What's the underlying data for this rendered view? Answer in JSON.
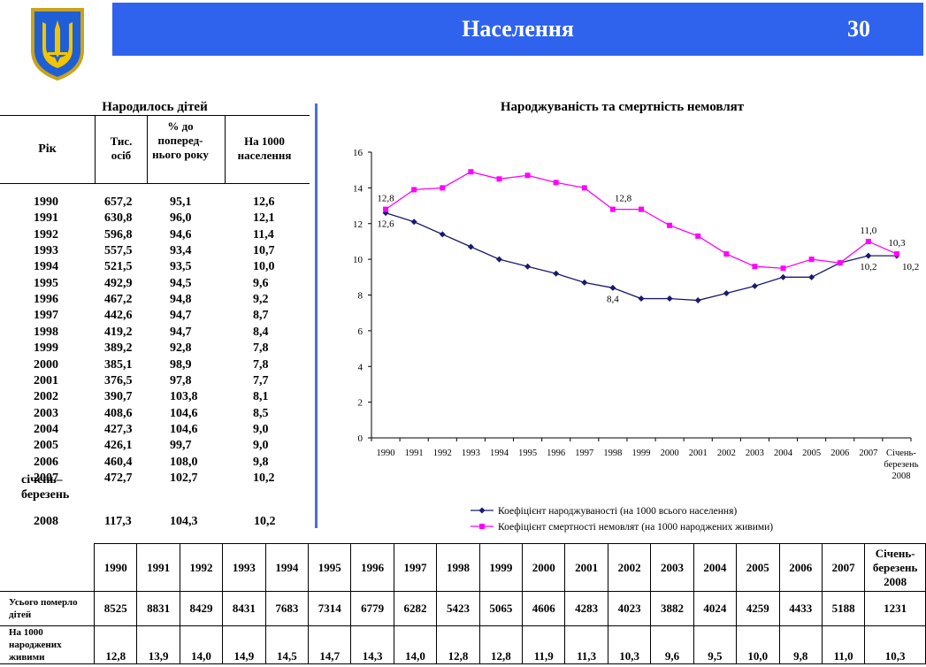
{
  "header": {
    "title": "Населення",
    "page_number": "30",
    "colors": {
      "bar": "#2f63ee",
      "text": "#ffffff"
    }
  },
  "emblem": {
    "icon": "trident-coat-of-arms-icon"
  },
  "left_table": {
    "title": "Народилось дітей",
    "headers": {
      "year": "Рік",
      "thousands": "Тис. осіб",
      "percent": "% до поперед-нього року",
      "per1000": "На 1000 населення"
    },
    "rows": [
      {
        "year": "1990",
        "thousands": "657,2",
        "percent": "95,1",
        "per1000": "12,6"
      },
      {
        "year": "1991",
        "thousands": "630,8",
        "percent": "96,0",
        "per1000": "12,1"
      },
      {
        "year": "1992",
        "thousands": "596,8",
        "percent": "94,6",
        "per1000": "11,4"
      },
      {
        "year": "1993",
        "thousands": "557,5",
        "percent": "93,4",
        "per1000": "10,7"
      },
      {
        "year": "1994",
        "thousands": "521,5",
        "percent": "93,5",
        "per1000": "10,0"
      },
      {
        "year": "1995",
        "thousands": "492,9",
        "percent": "94,5",
        "per1000": "9,6"
      },
      {
        "year": "1996",
        "thousands": "467,2",
        "percent": "94,8",
        "per1000": "9,2"
      },
      {
        "year": "1997",
        "thousands": "442,6",
        "percent": "94,7",
        "per1000": "8,7"
      },
      {
        "year": "1998",
        "thousands": "419,2",
        "percent": "94,7",
        "per1000": "8,4"
      },
      {
        "year": "1999",
        "thousands": "389,2",
        "percent": "92,8",
        "per1000": "7,8"
      },
      {
        "year": "2000",
        "thousands": "385,1",
        "percent": "98,9",
        "per1000": "7,8"
      },
      {
        "year": "2001",
        "thousands": "376,5",
        "percent": "97,8",
        "per1000": "7,7"
      },
      {
        "year": "2002",
        "thousands": "390,7",
        "percent": "103,8",
        "per1000": "8,1"
      },
      {
        "year": "2003",
        "thousands": "408,6",
        "percent": "104,6",
        "per1000": "8,5"
      },
      {
        "year": "2004",
        "thousands": "427,3",
        "percent": "104,6",
        "per1000": "9,0"
      },
      {
        "year": "2005",
        "thousands": "426,1",
        "percent": "99,7",
        "per1000": "9,0"
      },
      {
        "year": "2006",
        "thousands": "460,4",
        "percent": "108,0",
        "per1000": "9,8"
      },
      {
        "year": "2007",
        "thousands": "472,7",
        "percent": "102,7",
        "per1000": "10,2"
      }
    ],
    "last_row": {
      "year_line1": "січень–",
      "year_line2": "березень",
      "year_line3": "2008",
      "thousands": "117,3",
      "percent": "104,3",
      "per1000": "10,2"
    }
  },
  "chart_data": {
    "type": "line",
    "title": "Народжуваність та смертність немовлят",
    "categories": [
      "1990",
      "1991",
      "1992",
      "1993",
      "1994",
      "1995",
      "1996",
      "1997",
      "1998",
      "1999",
      "2000",
      "2001",
      "2002",
      "2003",
      "2004",
      "2005",
      "2006",
      "2007",
      "Січень-березень 2008"
    ],
    "category_labels": [
      "1990",
      "1991",
      "1992",
      "1993",
      "1994",
      "1995",
      "1996",
      "1997",
      "1998",
      "1999",
      "2000",
      "2001",
      "2002",
      "2003",
      "2004",
      "2005",
      "2006",
      "2007",
      [
        "Січень-",
        "березень",
        "2008"
      ]
    ],
    "y_ticks": [
      "0",
      "2",
      "4",
      "6",
      "8",
      "10",
      "12",
      "14",
      "16"
    ],
    "ylim": [
      0,
      16
    ],
    "series": [
      {
        "name": "Коефіцієнт народжуваності (на 1000 всього населення)",
        "color": "#1a1a6e",
        "marker": "diamond",
        "values": [
          12.6,
          12.1,
          11.4,
          10.7,
          10.0,
          9.6,
          9.2,
          8.7,
          8.4,
          7.8,
          7.8,
          7.7,
          8.1,
          8.5,
          9.0,
          9.0,
          9.8,
          10.2,
          10.2
        ],
        "labels": [
          {
            "index": 0,
            "text": "12,6",
            "pos": "below"
          },
          {
            "index": 8,
            "text": "8,4",
            "pos": "below"
          },
          {
            "index": 17,
            "text": "10,2",
            "pos": "below"
          },
          {
            "index": 18,
            "text": "10,2",
            "pos": "below-right"
          }
        ]
      },
      {
        "name": "Коефіцієнт смертності немовлят (на 1000 народжених живими)",
        "color": "#ff00ff",
        "marker": "square",
        "values": [
          12.8,
          13.9,
          14.0,
          14.9,
          14.5,
          14.7,
          14.3,
          14.0,
          12.8,
          12.8,
          11.9,
          11.3,
          10.3,
          9.6,
          9.5,
          10.0,
          9.8,
          11.0,
          10.3
        ],
        "labels": [
          {
            "index": 0,
            "text": "12,8",
            "pos": "above"
          },
          {
            "index": 8,
            "text": "12,8",
            "pos": "above-right"
          },
          {
            "index": 17,
            "text": "11,0",
            "pos": "above"
          },
          {
            "index": 18,
            "text": "10,3",
            "pos": "above"
          }
        ]
      }
    ],
    "legend_position": "bottom"
  },
  "bottom_table": {
    "headers": [
      "1990",
      "1991",
      "1992",
      "1993",
      "1994",
      "1995",
      "1996",
      "1997",
      "1998",
      "1999",
      "2000",
      "2001",
      "2002",
      "2003",
      "2004",
      "2005",
      "2006",
      "2007",
      "Січень-березень 2008"
    ],
    "row1_label": "Усього померло дітей",
    "row1": [
      "8525",
      "8831",
      "8429",
      "8431",
      "7683",
      "7314",
      "6779",
      "6282",
      "5423",
      "5065",
      "4606",
      "4283",
      "4023",
      "3882",
      "4024",
      "4259",
      "4433",
      "5188",
      "1231"
    ],
    "row2_label": "На 1000 народжених живими",
    "row2": [
      "12,8",
      "13,9",
      "14,0",
      "14,9",
      "14,5",
      "14,7",
      "14,3",
      "14,0",
      "12,8",
      "12,8",
      "11,9",
      "11,3",
      "10,3",
      "9,6",
      "9,5",
      "10,0",
      "9,8",
      "11,0",
      "10,3"
    ]
  }
}
